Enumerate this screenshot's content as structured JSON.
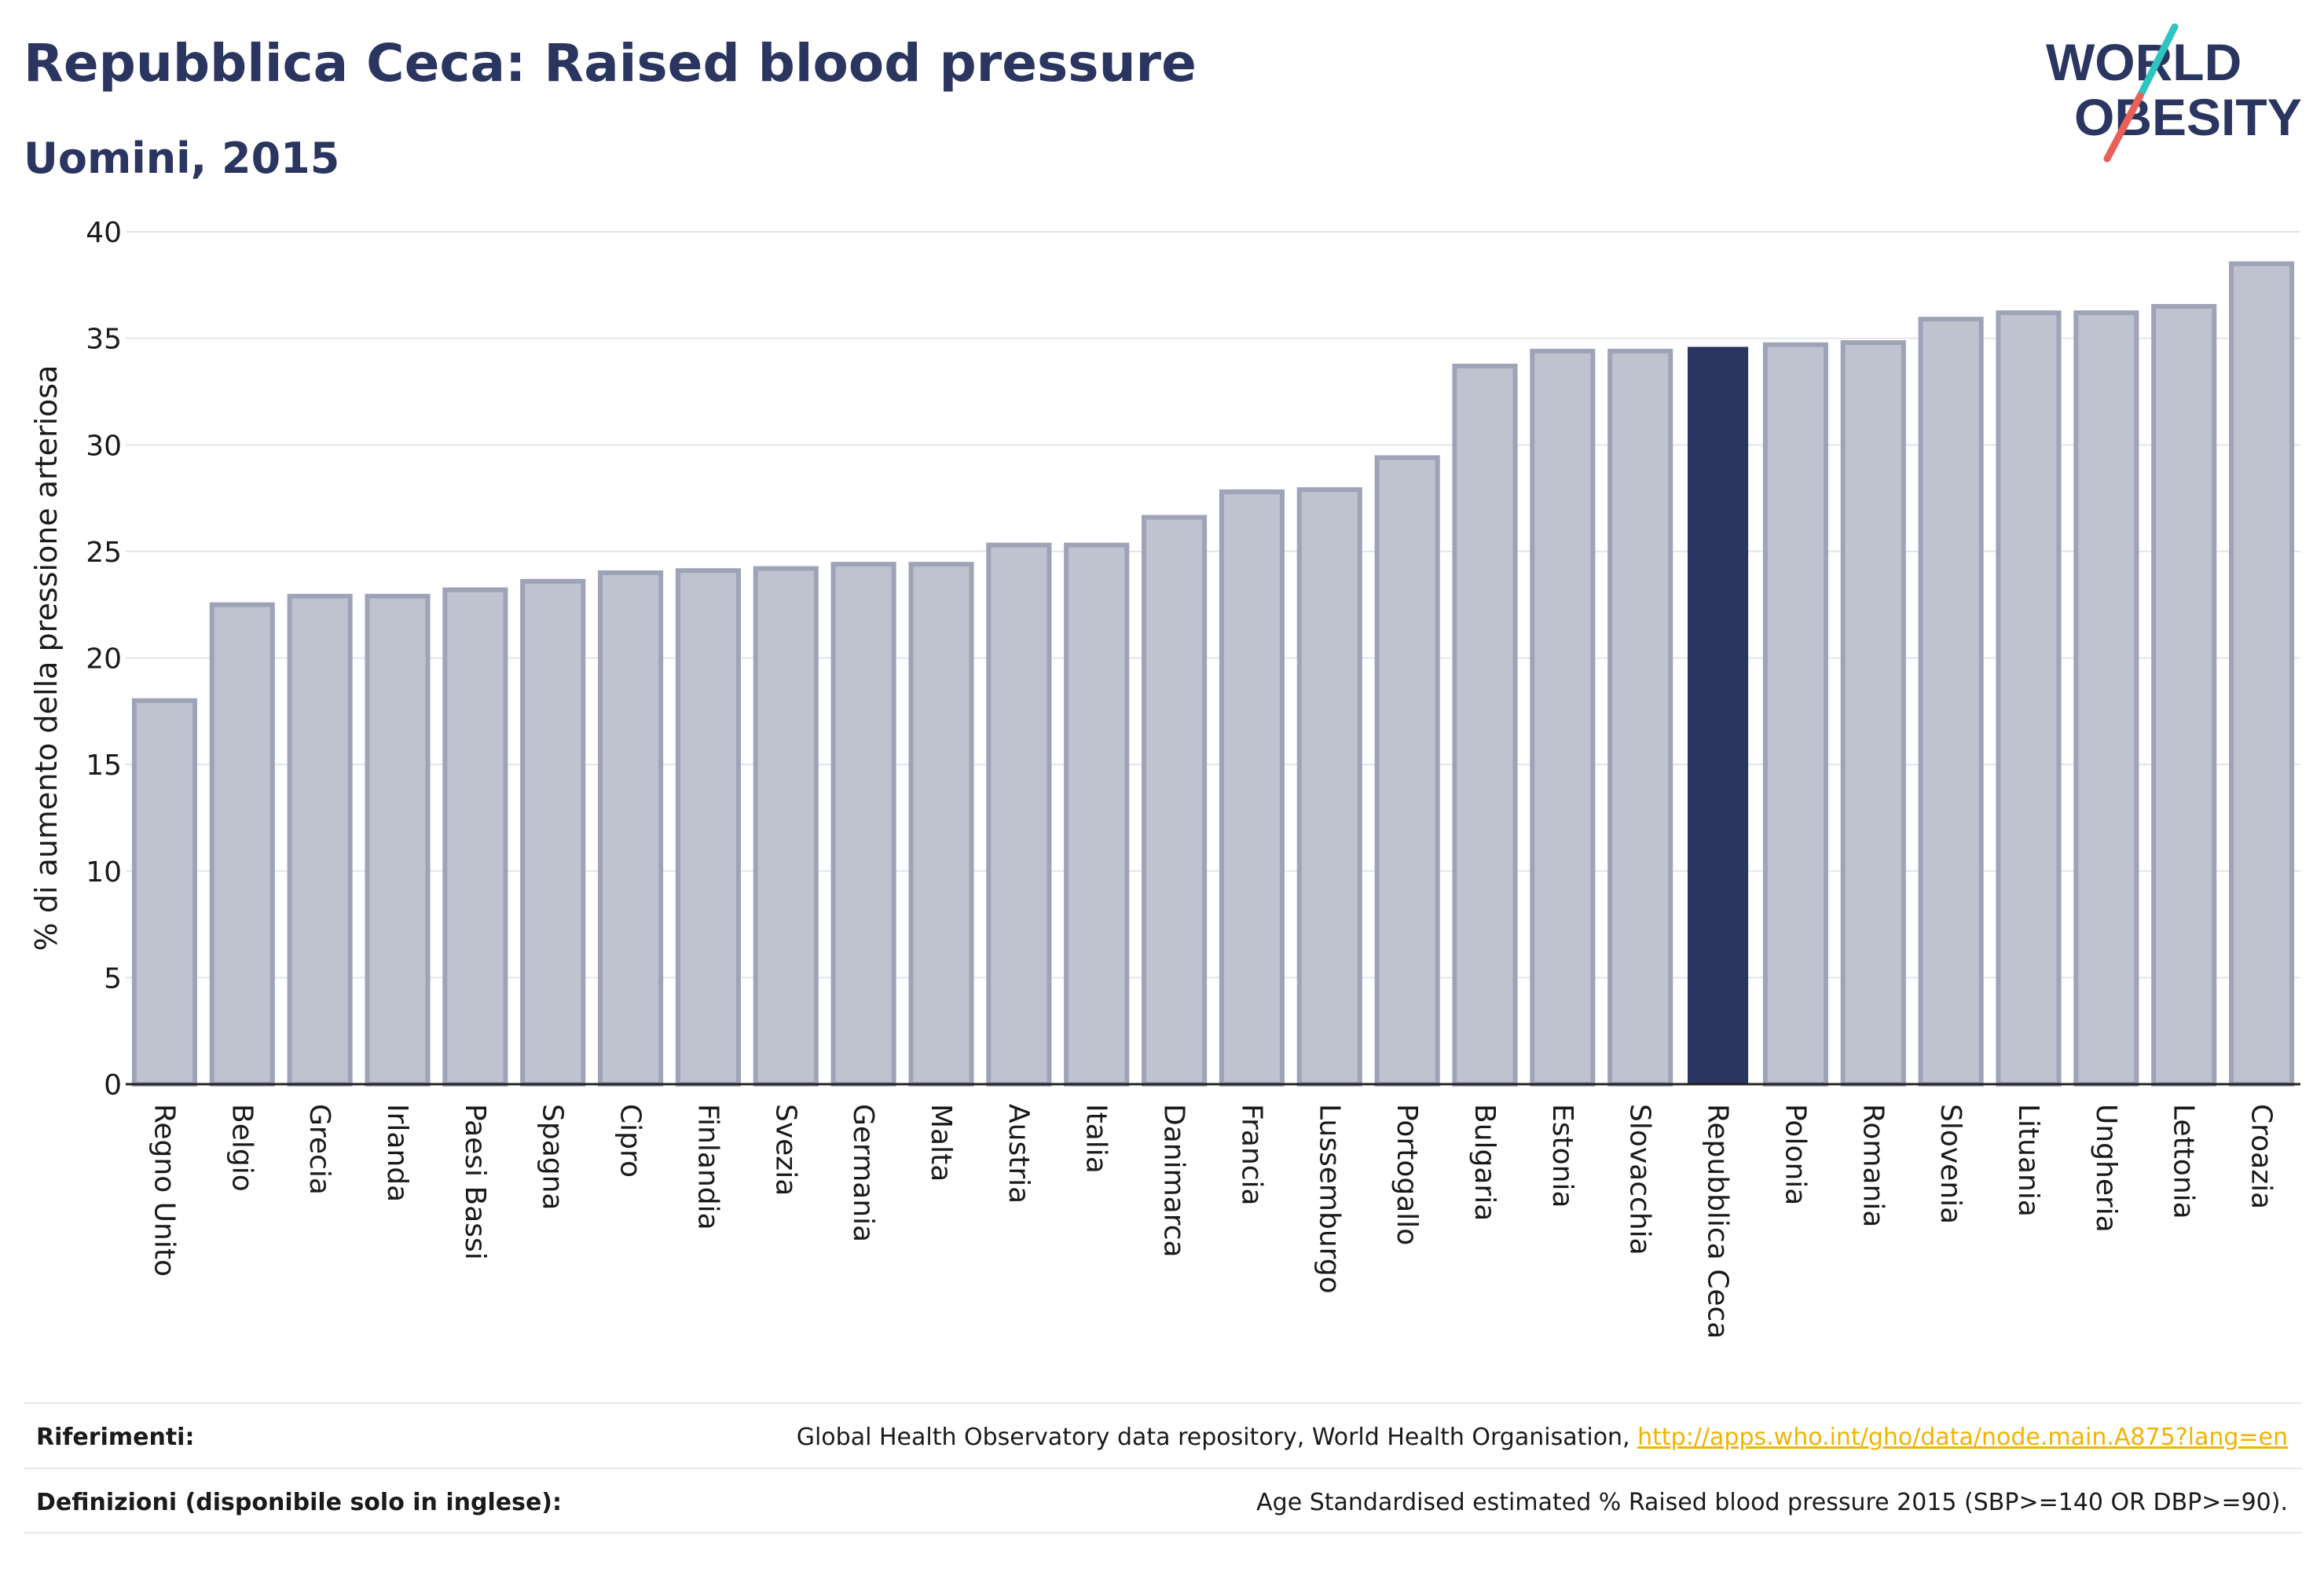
{
  "header": {
    "title": "Repubblica Ceca: Raised blood pressure",
    "subtitle": "Uomini, 2015"
  },
  "logo": {
    "line1": "WORLD",
    "line2": "OBESITY",
    "colors": {
      "text": "#2a3560",
      "slash_top": "#2ec4c0",
      "slash_bottom": "#e8605a"
    }
  },
  "colors": {
    "bar_default": "#bfc2cf",
    "bar_default_stroke": "#9ea3b8",
    "bar_highlight": "#2a3560",
    "grid": "#e3e5ec",
    "axis": "#222222",
    "link": "#f0b400"
  },
  "chart_data": {
    "type": "bar",
    "ylabel": "% di aumento della pressione arteriosa",
    "ylim": [
      0,
      40
    ],
    "yticks": [
      0,
      5,
      10,
      15,
      20,
      25,
      30,
      35,
      40
    ],
    "grid": true,
    "highlight": "Repubblica Ceca",
    "categories": [
      "Regno Unito",
      "Belgio",
      "Grecia",
      "Irlanda",
      "Paesi Bassi",
      "Spagna",
      "Cipro",
      "Finlandia",
      "Svezia",
      "Germania",
      "Malta",
      "Austria",
      "Italia",
      "Danimarca",
      "Francia",
      "Lussemburgo",
      "Portogallo",
      "Bulgaria",
      "Estonia",
      "Slovacchia",
      "Repubblica Ceca",
      "Polonia",
      "Romania",
      "Slovenia",
      "Lituania",
      "Ungheria",
      "Lettonia",
      "Croazia"
    ],
    "values": [
      18.0,
      22.5,
      22.9,
      22.9,
      23.2,
      23.6,
      24.0,
      24.1,
      24.2,
      24.4,
      24.4,
      25.3,
      25.3,
      26.6,
      27.8,
      27.9,
      29.4,
      33.7,
      34.4,
      34.4,
      34.6,
      34.7,
      34.8,
      35.9,
      36.2,
      36.2,
      36.5,
      38.5
    ]
  },
  "footer": {
    "references_label": "Riferimenti:",
    "references_text": "Global Health Observatory data repository, World Health Organisation, ",
    "references_link": "http://apps.who.int/gho/data/node.main.A875?lang=en",
    "definitions_label": "Definizioni (disponibile solo in inglese):",
    "definitions_text": "Age Standardised estimated % Raised blood pressure 2015 (SBP>=140 OR DBP>=90)."
  }
}
